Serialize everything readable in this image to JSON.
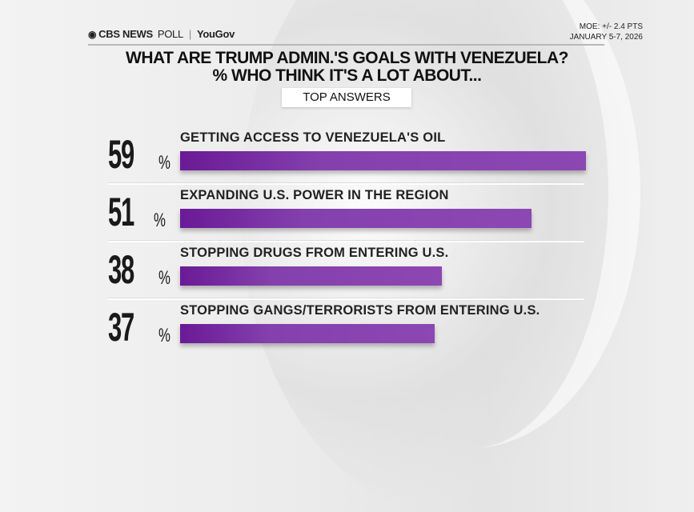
{
  "header": {
    "logo": {
      "brand": "CBS NEWS",
      "product": "POLL",
      "partner": "YouGov"
    },
    "moe": "MOE: +/- 2.4 PTS",
    "dates": "JANUARY 5-7, 2026"
  },
  "title_line1": "WHAT ARE TRUMP ADMIN.'S GOALS WITH VENEZUELA?",
  "title_line2": "% WHO THINK IT'S A LOT ABOUT...",
  "subtitle_pill": "TOP ANSWERS",
  "colors": {
    "bar_start": "#6a1a96",
    "bar_end": "#8d47b3",
    "text": "#1a1a1a"
  },
  "rows": [
    {
      "value": "59",
      "sign": "%",
      "label": "GETTING ACCESS TO VENEZUELA'S OIL"
    },
    {
      "value": "51",
      "sign": "%",
      "label": "EXPANDING U.S. POWER IN THE REGION"
    },
    {
      "value": "38",
      "sign": "%",
      "label": "STOPPING DRUGS FROM ENTERING U.S."
    },
    {
      "value": "37",
      "sign": "%",
      "label": "STOPPING GANGS/TERRORISTS FROM ENTERING U.S."
    }
  ],
  "chart_data": {
    "type": "bar",
    "orientation": "horizontal",
    "title": "WHAT ARE TRUMP ADMIN.'S GOALS WITH VENEZUELA? % WHO THINK IT'S A LOT ABOUT...",
    "subtitle": "TOP ANSWERS",
    "categories": [
      "GETTING ACCESS TO VENEZUELA'S OIL",
      "EXPANDING U.S. POWER IN THE REGION",
      "STOPPING DRUGS FROM ENTERING U.S.",
      "STOPPING GANGS/TERRORISTS FROM ENTERING U.S."
    ],
    "values": [
      59,
      51,
      38,
      37
    ],
    "unit": "%",
    "xlabel": "",
    "ylabel": "",
    "xlim": [
      0,
      100
    ],
    "grid": false,
    "legend": null,
    "source": "CBS NEWS POLL | YouGov",
    "annotations": [
      "MOE: +/- 2.4 PTS",
      "JANUARY 5-7, 2026"
    ]
  }
}
